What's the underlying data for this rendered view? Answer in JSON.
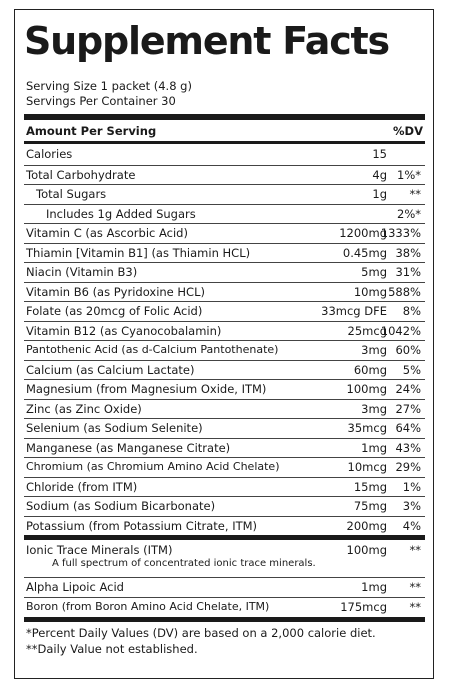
{
  "title": "Supplement Facts",
  "serving_size": "Serving Size 1 packet (4.8 g)",
  "servings_per_container": "Servings Per Container 30",
  "header": {
    "amount": "Amount Per Serving",
    "dv": "%DV"
  },
  "nutrients": [
    {
      "name": "Calories",
      "amount": "15",
      "dv": ""
    },
    {
      "name": "Total Carbohydrate",
      "amount": "4g",
      "dv": "1%*"
    },
    {
      "name": "Total Sugars",
      "amount": "1g",
      "dv": "**"
    },
    {
      "name": "Includes 1g Added Sugars",
      "amount": "",
      "dv": "2%*"
    },
    {
      "name": "Vitamin C (as Ascorbic Acid)",
      "amount": "1200mg",
      "dv": "1333%"
    },
    {
      "name": "Thiamin [Vitamin B1] (as Thiamin HCL)",
      "amount": "0.45mg",
      "dv": "38%"
    },
    {
      "name": "Niacin (Vitamin B3)",
      "amount": "5mg",
      "dv": "31%"
    },
    {
      "name": "Vitamin B6 (as Pyridoxine HCL)",
      "amount": "10mg",
      "dv": "588%"
    },
    {
      "name": "Folate (as 20mcg of Folic Acid)",
      "amount": "33mcg DFE",
      "dv": "8%"
    },
    {
      "name": "Vitamin B12 (as Cyanocobalamin)",
      "amount": "25mcg",
      "dv": "1042%"
    },
    {
      "name": "Pantothenic Acid (as d-Calcium Pantothenate)",
      "amount": "3mg",
      "dv": "60%"
    },
    {
      "name": "Calcium (as Calcium Lactate)",
      "amount": "60mg",
      "dv": "5%"
    },
    {
      "name": "Magnesium (from Magnesium Oxide, ITM)",
      "amount": "100mg",
      "dv": "24%"
    },
    {
      "name": "Zinc (as Zinc Oxide)",
      "amount": "3mg",
      "dv": "27%"
    },
    {
      "name": "Selenium (as Sodium Selenite)",
      "amount": "35mcg",
      "dv": "64%"
    },
    {
      "name": "Manganese (as Manganese Citrate)",
      "amount": "1mg",
      "dv": "43%"
    },
    {
      "name": "Chromium (as Chromium Amino Acid Chelate)",
      "amount": "10mcg",
      "dv": "29%"
    },
    {
      "name": "Chloride (from ITM)",
      "amount": "15mg",
      "dv": "1%"
    },
    {
      "name": "Sodium (as Sodium Bicarbonate)",
      "amount": "75mg",
      "dv": "3%"
    },
    {
      "name": "Potassium (from Potassium Citrate, ITM)",
      "amount": "200mg",
      "dv": "4%"
    }
  ],
  "ionic": {
    "name": "Ionic Trace Minerals (ITM)",
    "amount": "100mg",
    "dv": "**",
    "note": "A full spectrum of concentrated ionic trace minerals."
  },
  "other": [
    {
      "name": "Alpha Lipoic Acid",
      "amount": "1mg",
      "dv": "**"
    },
    {
      "name": "Boron (from Boron Amino Acid Chelate, ITM)",
      "amount": "175mcg",
      "dv": "**"
    }
  ],
  "footnotes": [
    "*Percent Daily Values (DV) are based on a 2,000 calorie diet.",
    "**Daily Value not established."
  ]
}
